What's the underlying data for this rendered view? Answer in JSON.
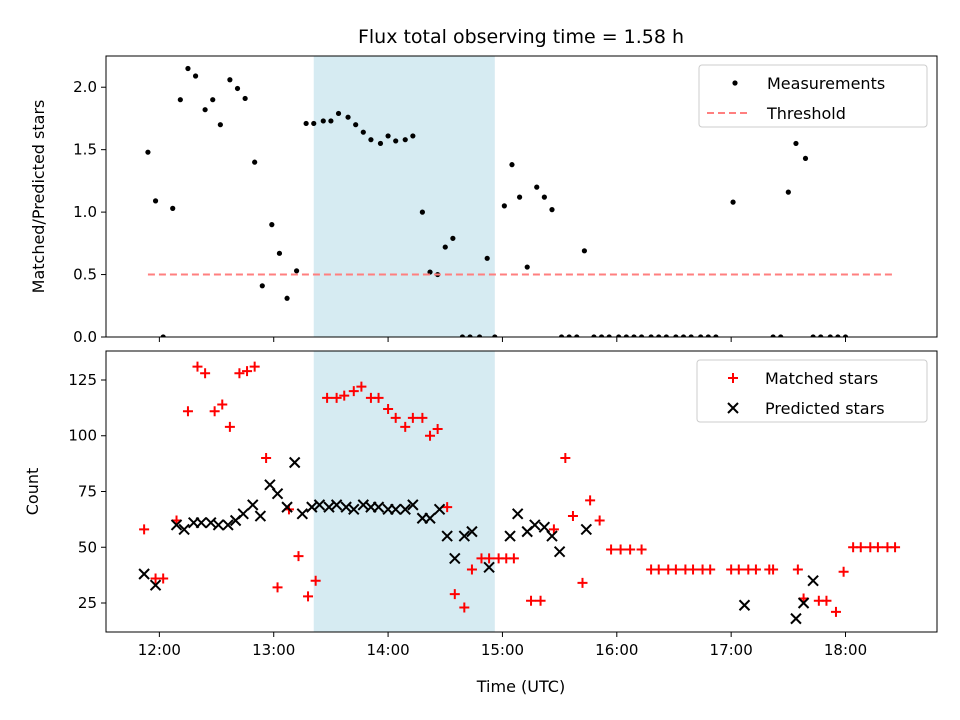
{
  "figure": {
    "title": "Flux total observing time = 1.58 h",
    "xlabel": "Time (UTC)"
  },
  "chart_data": [
    {
      "type": "scatter",
      "ylabel": "Matched/Predicted stars",
      "xlim": [
        "11:32",
        "18:48"
      ],
      "ylim": [
        0,
        2.25
      ],
      "y_ticks": [
        0.0,
        0.5,
        1.0,
        1.5,
        2.0
      ],
      "grid": false,
      "legend": "top-right",
      "highlight_span": {
        "x0": "13:21",
        "x1": "14:56",
        "color": "#add8e6"
      },
      "series": [
        {
          "name": "Measurements",
          "style": "dot",
          "color": "#000000",
          "points": [
            [
              "11:54",
              1.48
            ],
            [
              "11:58",
              1.09
            ],
            [
              "12:02",
              0.0
            ],
            [
              "12:07",
              1.03
            ],
            [
              "12:11",
              1.9
            ],
            [
              "12:15",
              2.15
            ],
            [
              "12:19",
              2.09
            ],
            [
              "12:24",
              1.82
            ],
            [
              "12:28",
              1.9
            ],
            [
              "12:32",
              1.7
            ],
            [
              "12:37",
              2.06
            ],
            [
              "12:41",
              1.99
            ],
            [
              "12:45",
              1.91
            ],
            [
              "12:50",
              1.4
            ],
            [
              "12:54",
              0.41
            ],
            [
              "12:59",
              0.9
            ],
            [
              "13:03",
              0.67
            ],
            [
              "13:07",
              0.31
            ],
            [
              "13:12",
              0.53
            ],
            [
              "13:17",
              1.71
            ],
            [
              "13:21",
              1.71
            ],
            [
              "13:26",
              1.73
            ],
            [
              "13:30",
              1.73
            ],
            [
              "13:34",
              1.79
            ],
            [
              "13:39",
              1.76
            ],
            [
              "13:43",
              1.7
            ],
            [
              "13:47",
              1.64
            ],
            [
              "13:51",
              1.58
            ],
            [
              "13:56",
              1.55
            ],
            [
              "14:00",
              1.61
            ],
            [
              "14:04",
              1.57
            ],
            [
              "14:09",
              1.58
            ],
            [
              "14:13",
              1.61
            ],
            [
              "14:18",
              1.0
            ],
            [
              "14:22",
              0.52
            ],
            [
              "14:26",
              0.5
            ],
            [
              "14:30",
              0.72
            ],
            [
              "14:34",
              0.79
            ],
            [
              "14:39",
              0.0
            ],
            [
              "14:43",
              0.0
            ],
            [
              "14:48",
              0.0
            ],
            [
              "14:52",
              0.63
            ],
            [
              "14:56",
              0.0
            ],
            [
              "15:01",
              1.05
            ],
            [
              "15:05",
              1.38
            ],
            [
              "15:09",
              1.12
            ],
            [
              "15:13",
              0.56
            ],
            [
              "15:18",
              1.2
            ],
            [
              "15:22",
              1.12
            ],
            [
              "15:26",
              1.02
            ],
            [
              "15:31",
              0.0
            ],
            [
              "15:35",
              0.0
            ],
            [
              "15:39",
              0.0
            ],
            [
              "15:43",
              0.69
            ],
            [
              "15:48",
              0.0
            ],
            [
              "15:52",
              0.0
            ],
            [
              "15:56",
              0.0
            ],
            [
              "16:01",
              0.0
            ],
            [
              "16:05",
              0.0
            ],
            [
              "16:09",
              0.0
            ],
            [
              "16:13",
              0.0
            ],
            [
              "16:18",
              0.0
            ],
            [
              "16:22",
              0.0
            ],
            [
              "16:26",
              0.0
            ],
            [
              "16:31",
              0.0
            ],
            [
              "16:35",
              0.0
            ],
            [
              "16:39",
              0.0
            ],
            [
              "16:44",
              0.0
            ],
            [
              "16:48",
              0.0
            ],
            [
              "16:52",
              0.0
            ],
            [
              "17:01",
              1.08
            ],
            [
              "17:22",
              0.0
            ],
            [
              "17:26",
              0.0
            ],
            [
              "17:30",
              1.16
            ],
            [
              "17:34",
              1.55
            ],
            [
              "17:39",
              1.43
            ],
            [
              "17:43",
              0.0
            ],
            [
              "17:47",
              0.0
            ],
            [
              "17:52",
              0.0
            ],
            [
              "17:56",
              0.0
            ],
            [
              "18:00",
              0.0
            ]
          ]
        },
        {
          "name": "Threshold",
          "style": "dashed-line",
          "color": "#ff7f7f",
          "points": [
            [
              "11:54",
              0.5
            ],
            [
              "18:26",
              0.5
            ]
          ]
        }
      ]
    },
    {
      "type": "scatter",
      "ylabel": "Count",
      "xlim": [
        "11:32",
        "18:48"
      ],
      "ylim": [
        12,
        138
      ],
      "y_ticks": [
        25,
        50,
        75,
        100,
        125
      ],
      "x_ticks": [
        "12:00",
        "13:00",
        "14:00",
        "15:00",
        "16:00",
        "17:00",
        "18:00"
      ],
      "grid": false,
      "legend": "top-right",
      "highlight_span": {
        "x0": "13:21",
        "x1": "14:56",
        "color": "#add8e6"
      },
      "series": [
        {
          "name": "Matched stars",
          "style": "plus",
          "color": "#ff0000",
          "points": [
            [
              "11:52",
              58
            ],
            [
              "11:58",
              36
            ],
            [
              "12:02",
              36
            ],
            [
              "12:09",
              62
            ],
            [
              "12:15",
              111
            ],
            [
              "12:20",
              131
            ],
            [
              "12:24",
              128
            ],
            [
              "12:29",
              111
            ],
            [
              "12:33",
              114
            ],
            [
              "12:37",
              104
            ],
            [
              "12:42",
              128
            ],
            [
              "12:46",
              129
            ],
            [
              "12:50",
              131
            ],
            [
              "12:56",
              90
            ],
            [
              "13:02",
              32
            ],
            [
              "13:08",
              67
            ],
            [
              "13:13",
              46
            ],
            [
              "13:18",
              28
            ],
            [
              "13:22",
              35
            ],
            [
              "13:28",
              117
            ],
            [
              "13:33",
              117
            ],
            [
              "13:37",
              118
            ],
            [
              "13:42",
              120
            ],
            [
              "13:46",
              122
            ],
            [
              "13:51",
              117
            ],
            [
              "13:55",
              117
            ],
            [
              "14:00",
              112
            ],
            [
              "14:04",
              108
            ],
            [
              "14:09",
              104
            ],
            [
              "14:13",
              108
            ],
            [
              "14:18",
              108
            ],
            [
              "14:22",
              100
            ],
            [
              "14:26",
              103
            ],
            [
              "14:31",
              68
            ],
            [
              "14:35",
              29
            ],
            [
              "14:40",
              23
            ],
            [
              "14:44",
              40
            ],
            [
              "14:49",
              45
            ],
            [
              "14:53",
              45
            ],
            [
              "14:58",
              45
            ],
            [
              "15:02",
              45
            ],
            [
              "15:06",
              45
            ],
            [
              "15:15",
              26
            ],
            [
              "15:20",
              26
            ],
            [
              "15:27",
              58
            ],
            [
              "15:33",
              90
            ],
            [
              "15:37",
              64
            ],
            [
              "15:42",
              34
            ],
            [
              "15:46",
              71
            ],
            [
              "15:51",
              62
            ],
            [
              "15:57",
              49
            ],
            [
              "16:02",
              49
            ],
            [
              "16:07",
              49
            ],
            [
              "16:13",
              49
            ],
            [
              "16:18",
              40
            ],
            [
              "16:22",
              40
            ],
            [
              "16:27",
              40
            ],
            [
              "16:31",
              40
            ],
            [
              "16:36",
              40
            ],
            [
              "16:40",
              40
            ],
            [
              "16:45",
              40
            ],
            [
              "16:49",
              40
            ],
            [
              "17:00",
              40
            ],
            [
              "17:04",
              40
            ],
            [
              "17:09",
              40
            ],
            [
              "17:13",
              40
            ],
            [
              "17:20",
              40
            ],
            [
              "17:22",
              40
            ],
            [
              "17:35",
              40
            ],
            [
              "17:38",
              27
            ],
            [
              "17:46",
              26
            ],
            [
              "17:50",
              26
            ],
            [
              "17:55",
              21
            ],
            [
              "17:59",
              39
            ],
            [
              "18:04",
              50
            ],
            [
              "18:08",
              50
            ],
            [
              "18:13",
              50
            ],
            [
              "18:17",
              50
            ],
            [
              "18:22",
              50
            ],
            [
              "18:26",
              50
            ]
          ]
        },
        {
          "name": "Predicted stars",
          "style": "x",
          "color": "#000000",
          "points": [
            [
              "11:52",
              38
            ],
            [
              "11:58",
              33
            ],
            [
              "12:09",
              60
            ],
            [
              "12:13",
              58
            ],
            [
              "12:18",
              61
            ],
            [
              "12:22",
              61
            ],
            [
              "12:27",
              61
            ],
            [
              "12:31",
              60
            ],
            [
              "12:36",
              60
            ],
            [
              "12:40",
              62
            ],
            [
              "12:44",
              65
            ],
            [
              "12:49",
              69
            ],
            [
              "12:53",
              64
            ],
            [
              "12:58",
              78
            ],
            [
              "13:02",
              74
            ],
            [
              "13:07",
              68
            ],
            [
              "13:11",
              88
            ],
            [
              "13:15",
              65
            ],
            [
              "13:20",
              68
            ],
            [
              "13:24",
              69
            ],
            [
              "13:29",
              68
            ],
            [
              "13:33",
              69
            ],
            [
              "13:38",
              68
            ],
            [
              "13:42",
              67
            ],
            [
              "13:47",
              69
            ],
            [
              "13:51",
              68
            ],
            [
              "13:55",
              68
            ],
            [
              "14:00",
              67
            ],
            [
              "14:04",
              67
            ],
            [
              "14:09",
              67
            ],
            [
              "14:13",
              69
            ],
            [
              "14:18",
              63
            ],
            [
              "14:22",
              63
            ],
            [
              "14:27",
              67
            ],
            [
              "14:31",
              55
            ],
            [
              "14:35",
              45
            ],
            [
              "14:40",
              55
            ],
            [
              "14:44",
              57
            ],
            [
              "14:53",
              41
            ],
            [
              "15:04",
              55
            ],
            [
              "15:08",
              65
            ],
            [
              "15:13",
              57
            ],
            [
              "15:17",
              60
            ],
            [
              "15:22",
              59
            ],
            [
              "15:26",
              55
            ],
            [
              "15:30",
              48
            ],
            [
              "15:44",
              58
            ],
            [
              "17:07",
              24
            ],
            [
              "17:34",
              18
            ],
            [
              "17:38",
              25
            ],
            [
              "17:43",
              35
            ]
          ]
        }
      ]
    }
  ]
}
